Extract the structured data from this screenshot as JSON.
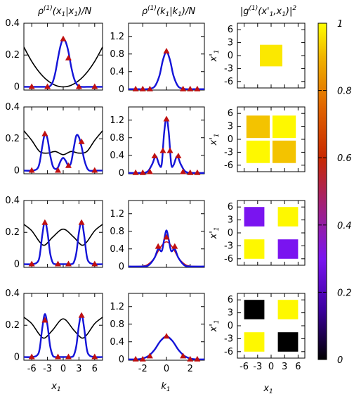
{
  "columns": [
    {
      "title_main": "ρ",
      "title_sup": "(1)",
      "title_rest": "(x",
      "title_sub": "1",
      "title_tail": "|x",
      "title_sub2": "1",
      "title_end": ")/N"
    },
    {
      "title_main": "ρ",
      "title_sup": "(1)",
      "title_rest": "(k",
      "title_sub": "1",
      "title_tail": "|k",
      "title_sub2": "1",
      "title_end": ")/N"
    },
    {
      "title_main": "|g",
      "title_sup": "(1)",
      "title_rest": "(x'",
      "title_sub": "1",
      "title_tail": ",x",
      "title_sub2": "1",
      "title_end": ")|",
      "title_sq": "2"
    }
  ],
  "xlabels": {
    "col1": {
      "main": "x",
      "sub": "1"
    },
    "col2": {
      "main": "k",
      "sub": "1"
    },
    "col3": {
      "main": "x",
      "sub": "1"
    }
  },
  "ylabel_col3": {
    "main": "x'",
    "sub": "1"
  },
  "colorbar": {
    "ticks": [
      "0",
      "0.2",
      "0.4",
      "0.6",
      "0.8",
      "1"
    ],
    "range": [
      0,
      1
    ]
  },
  "chart_data": [
    {
      "type": "line",
      "panel": "position density",
      "row": 1,
      "xlim": [
        -7.5,
        7.5
      ],
      "ylim": [
        -0.02,
        0.4
      ],
      "xticks": [
        "-6",
        "-3",
        "0",
        "3",
        "6"
      ],
      "yticks": [
        "0",
        "0.2",
        "0.4"
      ],
      "series": [
        {
          "kind": "density-curve",
          "color": "#1414d8",
          "x": [
            -7.5,
            -6,
            -4.5,
            -3.5,
            -3,
            -2.5,
            -2,
            -1.5,
            -1,
            -0.5,
            0,
            0.5,
            1,
            1.5,
            2,
            2.5,
            3,
            3.5,
            4.5,
            6,
            7.5
          ],
          "y": [
            0,
            0,
            0,
            0,
            0,
            0.005,
            0.03,
            0.09,
            0.18,
            0.26,
            0.3,
            0.28,
            0.22,
            0.13,
            0.06,
            0.02,
            0.005,
            0,
            0,
            0,
            0
          ]
        },
        {
          "kind": "potential",
          "color": "#000000",
          "x": [
            -7.5,
            -6,
            -4.5,
            -3,
            -1.5,
            0,
            1.5,
            3,
            4.5,
            6,
            7.5
          ],
          "y": [
            0.25,
            0.16,
            0.09,
            0.04,
            0.01,
            0,
            0.01,
            0.04,
            0.09,
            0.16,
            0.25
          ]
        },
        {
          "kind": "markers",
          "color": "#c01010",
          "x": [
            -6,
            -3,
            0,
            1,
            3,
            6
          ],
          "y": [
            0,
            0,
            0.3,
            0.18,
            0,
            0
          ]
        }
      ]
    },
    {
      "type": "line",
      "panel": "momentum density",
      "row": 1,
      "xlim": [
        -3.2,
        3.2
      ],
      "ylim": [
        -0.02,
        1.5
      ],
      "xticks": [
        "-2",
        "0",
        "2"
      ],
      "yticks": [
        "0",
        "0.4",
        "0.8",
        "1.2"
      ],
      "series": [
        {
          "kind": "density-curve",
          "color": "#1414d8",
          "x": [
            -3.2,
            -2.5,
            -2,
            -1.5,
            -1,
            -0.6,
            -0.3,
            0,
            0.3,
            0.6,
            1,
            1.5,
            2,
            2.5,
            3.2
          ],
          "y": [
            0,
            0,
            0,
            0.005,
            0.06,
            0.3,
            0.66,
            0.85,
            0.66,
            0.3,
            0.06,
            0.005,
            0,
            0,
            0
          ]
        },
        {
          "kind": "markers",
          "color": "#c01010",
          "x": [
            -2.6,
            -2,
            -1.4,
            0,
            1.4,
            2,
            2.6
          ],
          "y": [
            0,
            0,
            0,
            0.86,
            0,
            0,
            0
          ]
        }
      ]
    },
    {
      "type": "heatmap",
      "row": 1,
      "xlim": [
        -7.5,
        7.5
      ],
      "ylim": [
        -7.5,
        7.5
      ],
      "xticks": [
        "-6",
        "-3",
        "0",
        "3",
        "6"
      ],
      "yticks": [
        "6",
        "3",
        "0",
        "-3",
        "-6"
      ],
      "blocks": [
        {
          "x": [
            -2.5,
            2.5
          ],
          "y": [
            -2.5,
            2.5
          ],
          "value": 0.97
        }
      ]
    },
    {
      "type": "line",
      "panel": "position density",
      "row": 2,
      "xlim": [
        -7.5,
        7.5
      ],
      "ylim": [
        -0.02,
        0.4
      ],
      "xticks": [
        "-6",
        "-3",
        "0",
        "3",
        "6"
      ],
      "yticks": [
        "0",
        "0.2",
        "0.4"
      ],
      "series": [
        {
          "kind": "density-curve",
          "color": "#1414d8",
          "x": [
            -7.5,
            -6,
            -5,
            -4.5,
            -4,
            -3.5,
            -3,
            -2.5,
            -2,
            -1.5,
            -1,
            -0.5,
            0,
            0.5,
            1,
            1.5,
            2,
            2.5,
            3,
            3.5,
            4,
            4.5,
            5,
            6,
            7.5
          ],
          "y": [
            0,
            0,
            0.01,
            0.05,
            0.15,
            0.23,
            0.2,
            0.1,
            0.03,
            0.01,
            0.02,
            0.06,
            0.08,
            0.06,
            0.03,
            0.05,
            0.14,
            0.22,
            0.21,
            0.15,
            0.07,
            0.02,
            0,
            0,
            0
          ]
        },
        {
          "kind": "potential",
          "color": "#000000",
          "x": [
            -7.5,
            -6,
            -4.5,
            -3,
            -1.5,
            0,
            1.5,
            3,
            4.5,
            6,
            7.5
          ],
          "y": [
            0.25,
            0.19,
            0.12,
            0.11,
            0.12,
            0.1,
            0.12,
            0.11,
            0.12,
            0.19,
            0.25
          ]
        },
        {
          "kind": "markers",
          "color": "#c01010",
          "x": [
            -6,
            -3.5,
            -1,
            1,
            3.5,
            6
          ],
          "y": [
            0,
            0.23,
            0,
            0.03,
            0.18,
            0
          ]
        }
      ]
    },
    {
      "type": "line",
      "panel": "momentum density",
      "row": 2,
      "xlim": [
        -3.2,
        3.2
      ],
      "ylim": [
        -0.02,
        1.5
      ],
      "xticks": [
        "-2",
        "0",
        "2"
      ],
      "yticks": [
        "0",
        "0.4",
        "0.8",
        "1.2"
      ],
      "series": [
        {
          "kind": "density-curve",
          "color": "#1414d8",
          "x": [
            -3.2,
            -2.2,
            -1.6,
            -1.2,
            -0.9,
            -0.6,
            -0.4,
            -0.2,
            0,
            0.2,
            0.4,
            0.6,
            0.9,
            1.2,
            1.6,
            2.2,
            3.2
          ],
          "y": [
            0,
            0,
            0.03,
            0.2,
            0.38,
            0.18,
            0.2,
            0.9,
            1.25,
            0.9,
            0.2,
            0.18,
            0.38,
            0.2,
            0.03,
            0,
            0
          ]
        },
        {
          "kind": "markers",
          "color": "#c01010",
          "x": [
            -2.6,
            -2,
            -1.4,
            -1,
            -0.3,
            0,
            0.3,
            1,
            1.4,
            2,
            2.6
          ],
          "y": [
            0,
            0,
            0.02,
            0.38,
            0.5,
            1.22,
            0.5,
            0.38,
            0.02,
            0,
            0
          ]
        }
      ]
    },
    {
      "type": "heatmap",
      "row": 2,
      "xlim": [
        -7.5,
        7.5
      ],
      "ylim": [
        -7.5,
        7.5
      ],
      "xticks": [
        "-6",
        "-3",
        "0",
        "3",
        "6"
      ],
      "yticks": [
        "6",
        "3",
        "0",
        "-3",
        "-6"
      ],
      "blocks": [
        {
          "x": [
            -5.5,
            -0.3
          ],
          "y": [
            0.3,
            5.5
          ],
          "value": 0.92
        },
        {
          "x": [
            0.3,
            5.5
          ],
          "y": [
            0.3,
            5.5
          ],
          "value": 0.99
        },
        {
          "x": [
            -5.5,
            -0.3
          ],
          "y": [
            -5.5,
            -0.3
          ],
          "value": 0.99
        },
        {
          "x": [
            0.3,
            5.5
          ],
          "y": [
            -5.5,
            -0.3
          ],
          "value": 0.92
        }
      ]
    },
    {
      "type": "line",
      "panel": "position density",
      "row": 3,
      "xlim": [
        -7.5,
        7.5
      ],
      "ylim": [
        -0.02,
        0.4
      ],
      "xticks": [
        "-6",
        "-3",
        "0",
        "3",
        "6"
      ],
      "yticks": [
        "0",
        "0.2",
        "0.4"
      ],
      "series": [
        {
          "kind": "density-curve",
          "color": "#1414d8",
          "x": [
            -7.5,
            -6,
            -5,
            -4.5,
            -4,
            -3.5,
            -3,
            -2.5,
            -2,
            -1.5,
            -1,
            0,
            1,
            1.5,
            2,
            2.5,
            3,
            3.5,
            4,
            4.5,
            5,
            6,
            7.5
          ],
          "y": [
            0,
            0,
            0.01,
            0.05,
            0.18,
            0.27,
            0.2,
            0.07,
            0.01,
            0,
            0,
            0,
            0,
            0,
            0.01,
            0.07,
            0.2,
            0.27,
            0.18,
            0.05,
            0.01,
            0,
            0
          ]
        },
        {
          "kind": "potential",
          "color": "#000000",
          "x": [
            -7.5,
            -6,
            -4.5,
            -3.5,
            -2,
            0,
            2,
            3.5,
            4.5,
            6,
            7.5
          ],
          "y": [
            0.25,
            0.21,
            0.14,
            0.12,
            0.17,
            0.22,
            0.17,
            0.12,
            0.14,
            0.21,
            0.25
          ]
        },
        {
          "kind": "markers",
          "color": "#c01010",
          "x": [
            -6,
            -3.5,
            -1,
            1,
            3.5,
            6
          ],
          "y": [
            0,
            0.26,
            0,
            0,
            0.26,
            0
          ]
        }
      ]
    },
    {
      "type": "line",
      "panel": "momentum density",
      "row": 3,
      "xlim": [
        -3.2,
        3.2
      ],
      "ylim": [
        -0.02,
        1.5
      ],
      "xticks": [
        "-2",
        "0",
        "2"
      ],
      "yticks": [
        "0",
        "0.4",
        "0.8",
        "1.2"
      ],
      "series": [
        {
          "kind": "density-curve",
          "color": "#1414d8",
          "x": [
            -3.2,
            -2,
            -1.5,
            -1,
            -0.7,
            -0.4,
            -0.2,
            0,
            0.2,
            0.4,
            0.7,
            1,
            1.5,
            2,
            3.2
          ],
          "y": [
            0,
            0,
            0.03,
            0.2,
            0.4,
            0.35,
            0.6,
            0.82,
            0.6,
            0.35,
            0.4,
            0.2,
            0.03,
            0,
            0
          ]
        },
        {
          "kind": "envelope",
          "color": "#d21414",
          "x": [
            -3.2,
            -2,
            -1.5,
            -1,
            -0.5,
            0,
            0.5,
            1,
            1.5,
            2,
            3.2
          ],
          "y": [
            0,
            0.01,
            0.06,
            0.2,
            0.44,
            0.56,
            0.44,
            0.2,
            0.06,
            0.01,
            0
          ]
        },
        {
          "kind": "markers",
          "color": "#c01010",
          "x": [
            -0.7,
            0,
            0.7
          ],
          "y": [
            0.45,
            0.66,
            0.45
          ]
        }
      ]
    },
    {
      "type": "heatmap",
      "row": 3,
      "xlim": [
        -7.5,
        7.5
      ],
      "ylim": [
        -7.5,
        7.5
      ],
      "xticks": [
        "-6",
        "-3",
        "0",
        "3",
        "6"
      ],
      "yticks": [
        "6",
        "3",
        "0",
        "-3",
        "-6"
      ],
      "blocks": [
        {
          "x": [
            -6,
            -1.5
          ],
          "y": [
            1.5,
            6
          ],
          "value": 0.3
        },
        {
          "x": [
            1.5,
            6
          ],
          "y": [
            1.5,
            6
          ],
          "value": 0.99
        },
        {
          "x": [
            -6,
            -1.5
          ],
          "y": [
            -6,
            -1.5
          ],
          "value": 0.99
        },
        {
          "x": [
            1.5,
            6
          ],
          "y": [
            -6,
            -1.5
          ],
          "value": 0.3
        }
      ]
    },
    {
      "type": "line",
      "panel": "position density",
      "row": 4,
      "xlim": [
        -7.5,
        7.5
      ],
      "ylim": [
        -0.02,
        0.4
      ],
      "xticks": [
        "-6",
        "-3",
        "0",
        "3",
        "6"
      ],
      "yticks": [
        "0",
        "0.2",
        "0.4"
      ],
      "series": [
        {
          "kind": "density-curve",
          "color": "#1414d8",
          "x": [
            -7.5,
            -6,
            -5,
            -4.5,
            -4,
            -3.5,
            -3,
            -2.5,
            -2,
            -1.5,
            -1,
            0,
            1,
            1.5,
            2,
            2.5,
            3,
            3.5,
            4,
            4.5,
            5,
            6,
            7.5
          ],
          "y": [
            0,
            0,
            0.01,
            0.05,
            0.18,
            0.27,
            0.2,
            0.07,
            0.01,
            0,
            0,
            0,
            0,
            0,
            0.01,
            0.07,
            0.2,
            0.27,
            0.18,
            0.05,
            0.01,
            0,
            0
          ]
        },
        {
          "kind": "potential",
          "color": "#000000",
          "x": [
            -7.5,
            -6,
            -4.5,
            -3.5,
            -2,
            0,
            2,
            3.5,
            4.5,
            6,
            7.5
          ],
          "y": [
            0.25,
            0.21,
            0.14,
            0.12,
            0.17,
            0.24,
            0.17,
            0.12,
            0.14,
            0.21,
            0.25
          ]
        },
        {
          "kind": "markers",
          "color": "#c01010",
          "x": [
            -6,
            -3.5,
            -1,
            1,
            3.5,
            6
          ],
          "y": [
            0,
            0.23,
            0,
            0,
            0.26,
            0
          ]
        }
      ]
    },
    {
      "type": "line",
      "panel": "momentum density",
      "row": 4,
      "xlim": [
        -3.2,
        3.2
      ],
      "ylim": [
        -0.02,
        1.5
      ],
      "xticks": [
        "-2",
        "0",
        "2"
      ],
      "yticks": [
        "0",
        "0.4",
        "0.8",
        "1.2"
      ],
      "series": [
        {
          "kind": "density-curve",
          "color": "#1414d8",
          "x": [
            -3.2,
            -2.5,
            -2,
            -1.5,
            -1,
            -0.5,
            0,
            0.5,
            1,
            1.5,
            2,
            2.5,
            3.2
          ],
          "y": [
            0,
            0,
            0.02,
            0.08,
            0.22,
            0.42,
            0.52,
            0.42,
            0.22,
            0.08,
            0.02,
            0,
            0
          ]
        },
        {
          "kind": "markers",
          "color": "#c01010",
          "x": [
            -2.6,
            -2,
            -1.4,
            0,
            1.4,
            2,
            2.6
          ],
          "y": [
            0,
            0,
            0.07,
            0.52,
            0.07,
            0,
            0
          ]
        }
      ]
    },
    {
      "type": "heatmap",
      "row": 4,
      "xlim": [
        -7.5,
        7.5
      ],
      "ylim": [
        -7.5,
        7.5
      ],
      "xticks": [
        "-6",
        "-3",
        "0",
        "3",
        "6"
      ],
      "yticks": [
        "6",
        "3",
        "0",
        "-3",
        "-6"
      ],
      "blocks": [
        {
          "x": [
            -6,
            -1.5
          ],
          "y": [
            1.5,
            6
          ],
          "value": 0.0
        },
        {
          "x": [
            1.5,
            6
          ],
          "y": [
            1.5,
            6
          ],
          "value": 0.99
        },
        {
          "x": [
            -6,
            -1.5
          ],
          "y": [
            -6,
            -1.5
          ],
          "value": 0.99
        },
        {
          "x": [
            1.5,
            6
          ],
          "y": [
            -6,
            -1.5
          ],
          "value": 0.0
        }
      ]
    }
  ]
}
